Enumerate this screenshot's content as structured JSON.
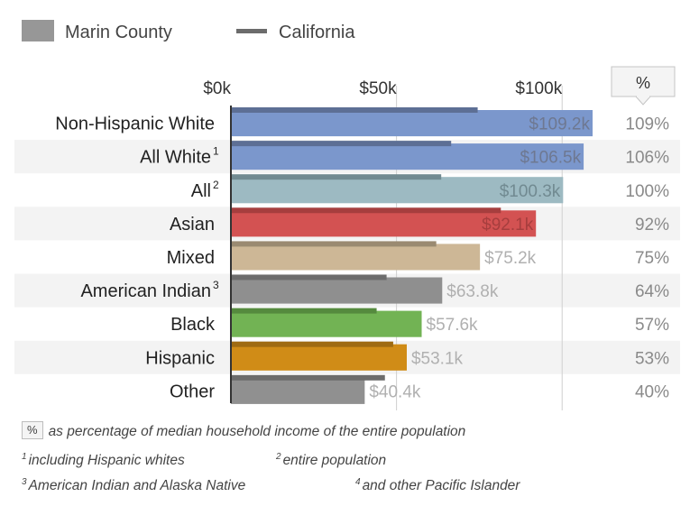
{
  "chart_data": {
    "type": "bar",
    "orientation": "horizontal",
    "legend": {
      "placement": "top-left",
      "items": [
        {
          "name": "Marin County",
          "symbol": "box"
        },
        {
          "name": "California",
          "symbol": "line"
        }
      ]
    },
    "ticks": {
      "values": [
        0,
        50,
        100
      ],
      "labels": [
        "$0k",
        "$50k",
        "$100k"
      ]
    },
    "xlim": [
      0,
      109.2
    ],
    "grid": true,
    "percent_header": "%",
    "categories": [
      {
        "label": "Non-Hispanic White",
        "sup": "",
        "marin": 109.2,
        "marin_label": "$109.2k",
        "california": 74.5,
        "pct": "109%",
        "color": "#7b97cc",
        "ca_color": "#5d6f95",
        "label_color": "#6e7891"
      },
      {
        "label": "All White",
        "sup": "1",
        "marin": 106.5,
        "marin_label": "$106.5k",
        "california": 66.5,
        "pct": "106%",
        "color": "#7b97cc",
        "ca_color": "#5d6f95",
        "label_color": "#6e7891"
      },
      {
        "label": "All",
        "sup": "2",
        "marin": 100.3,
        "marin_label": "$100.3k",
        "california": 63.5,
        "pct": "100%",
        "color": "#9dbac2",
        "ca_color": "#718a91",
        "label_color": "#718a91"
      },
      {
        "label": "Asian",
        "sup": "",
        "marin": 92.1,
        "marin_label": "$92.1k",
        "california": 81.5,
        "pct": "92%",
        "color": "#d35252",
        "ca_color": "#a63e3e",
        "label_color": "#a63e3e"
      },
      {
        "label": "Mixed",
        "sup": "",
        "marin": 75.2,
        "marin_label": "$75.2k",
        "california": 62.0,
        "pct": "75%",
        "color": "#cdb796",
        "ca_color": "#9a8a71",
        "label_color": "#b0b0b0"
      },
      {
        "label": "American Indian",
        "sup": "3",
        "marin": 63.8,
        "marin_label": "$63.8k",
        "california": 47.0,
        "pct": "64%",
        "color": "#8f8f8f",
        "ca_color": "#6c6c6c",
        "label_color": "#b0b0b0"
      },
      {
        "label": "Black",
        "sup": "",
        "marin": 57.6,
        "marin_label": "$57.6k",
        "california": 44.0,
        "pct": "57%",
        "color": "#72b354",
        "ca_color": "#558a3e",
        "label_color": "#b0b0b0"
      },
      {
        "label": "Hispanic",
        "sup": "",
        "marin": 53.1,
        "marin_label": "$53.1k",
        "california": 49.0,
        "pct": "53%",
        "color": "#d08c17",
        "ca_color": "#9f6b12",
        "label_color": "#b0b0b0"
      },
      {
        "label": "Other",
        "sup": "",
        "marin": 40.4,
        "marin_label": "$40.4k",
        "california": 46.5,
        "pct": "40%",
        "color": "#909090",
        "ca_color": "#6c6c6c",
        "label_color": "#b0b0b0"
      }
    ]
  },
  "footnotes": {
    "pct_key": "%",
    "pct_text": "as percentage of median household income of the entire population",
    "n1": {
      "sup": "1",
      "text": "including Hispanic whites"
    },
    "n2": {
      "sup": "2",
      "text": "entire population"
    },
    "n3": {
      "sup": "3",
      "text": "American Indian and Alaska Native"
    },
    "n4": {
      "sup": "4",
      "text": "and other Pacific Islander"
    }
  }
}
